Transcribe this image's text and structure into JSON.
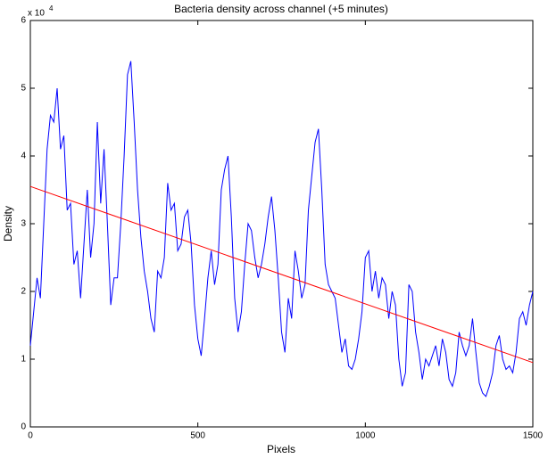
{
  "chart_data": {
    "type": "line",
    "title": "Bacteria density across channel (+5 minutes)",
    "x_label": "Pixels",
    "y_label": "Density",
    "y_multiplier": "x 10",
    "y_exponent": "4",
    "xlim": [
      0,
      1500
    ],
    "xticks": [
      0,
      500,
      1000,
      1500
    ],
    "ylim": [
      0,
      60000
    ],
    "yticks": [
      {
        "value": 0,
        "label": "0"
      },
      {
        "value": 10000,
        "label": "1"
      },
      {
        "value": 20000,
        "label": "2"
      },
      {
        "value": 30000,
        "label": "3"
      },
      {
        "value": 40000,
        "label": "4"
      },
      {
        "value": 50000,
        "label": "5"
      },
      {
        "value": 60000,
        "label": "6"
      }
    ],
    "grid": false,
    "series": [
      {
        "color": "#0000ff",
        "x": [
          0,
          10,
          20,
          30,
          40,
          50,
          60,
          70,
          80,
          90,
          100,
          110,
          120,
          130,
          140,
          150,
          160,
          170,
          180,
          190,
          200,
          210,
          220,
          230,
          240,
          250,
          260,
          270,
          280,
          290,
          300,
          310,
          320,
          330,
          340,
          350,
          360,
          370,
          380,
          390,
          400,
          410,
          420,
          430,
          440,
          450,
          460,
          470,
          480,
          490,
          500,
          510,
          520,
          530,
          540,
          550,
          560,
          570,
          580,
          590,
          600,
          610,
          620,
          630,
          640,
          650,
          660,
          670,
          680,
          690,
          700,
          710,
          720,
          730,
          740,
          750,
          760,
          770,
          780,
          790,
          800,
          810,
          820,
          830,
          840,
          850,
          860,
          870,
          880,
          890,
          900,
          910,
          920,
          930,
          940,
          950,
          960,
          970,
          980,
          990,
          1000,
          1010,
          1020,
          1030,
          1040,
          1050,
          1060,
          1070,
          1080,
          1090,
          1100,
          1110,
          1120,
          1130,
          1140,
          1150,
          1160,
          1170,
          1180,
          1190,
          1200,
          1210,
          1220,
          1230,
          1240,
          1250,
          1260,
          1270,
          1280,
          1290,
          1300,
          1310,
          1320,
          1330,
          1340,
          1350,
          1360,
          1370,
          1380,
          1390,
          1400,
          1410,
          1420,
          1430,
          1440,
          1450,
          1460,
          1470,
          1480,
          1490,
          1500
        ],
        "values": [
          12000,
          17000,
          22000,
          19000,
          30000,
          41000,
          46000,
          45000,
          50000,
          41000,
          43000,
          32000,
          33000,
          24000,
          26000,
          19000,
          27000,
          35000,
          25000,
          30000,
          45000,
          33000,
          41000,
          30000,
          18000,
          22000,
          22000,
          30000,
          40000,
          52000,
          54000,
          45000,
          35000,
          28000,
          23000,
          20000,
          16000,
          14000,
          23000,
          22000,
          25000,
          36000,
          32000,
          33000,
          26000,
          27000,
          31000,
          32000,
          27000,
          18000,
          13000,
          10500,
          16000,
          22000,
          26000,
          21000,
          24000,
          35000,
          38000,
          40000,
          31000,
          19000,
          14000,
          17000,
          24000,
          30000,
          29000,
          25000,
          22000,
          24000,
          27000,
          31000,
          34000,
          29000,
          22000,
          14000,
          11000,
          19000,
          16000,
          26000,
          23000,
          19000,
          21000,
          32000,
          37000,
          42000,
          44000,
          35000,
          24000,
          21000,
          20000,
          19000,
          15000,
          11000,
          13000,
          9000,
          8500,
          10000,
          13000,
          17000,
          25000,
          26000,
          20000,
          23000,
          19000,
          22000,
          21000,
          16000,
          20000,
          18000,
          10000,
          6000,
          8000,
          21000,
          20000,
          14000,
          11000,
          7000,
          10000,
          9000,
          10500,
          12000,
          9000,
          13000,
          11000,
          7000,
          6000,
          8000,
          14000,
          12000,
          10500,
          12000,
          16000,
          11000,
          6500,
          5000,
          4500,
          6000,
          8000,
          12000,
          13500,
          10000,
          8500,
          9000,
          8000,
          11000,
          16000,
          17000,
          15000,
          18000,
          20000
        ]
      },
      {
        "color": "#ff0000",
        "x": [
          0,
          1500
        ],
        "values": [
          35500,
          9500
        ]
      }
    ]
  }
}
